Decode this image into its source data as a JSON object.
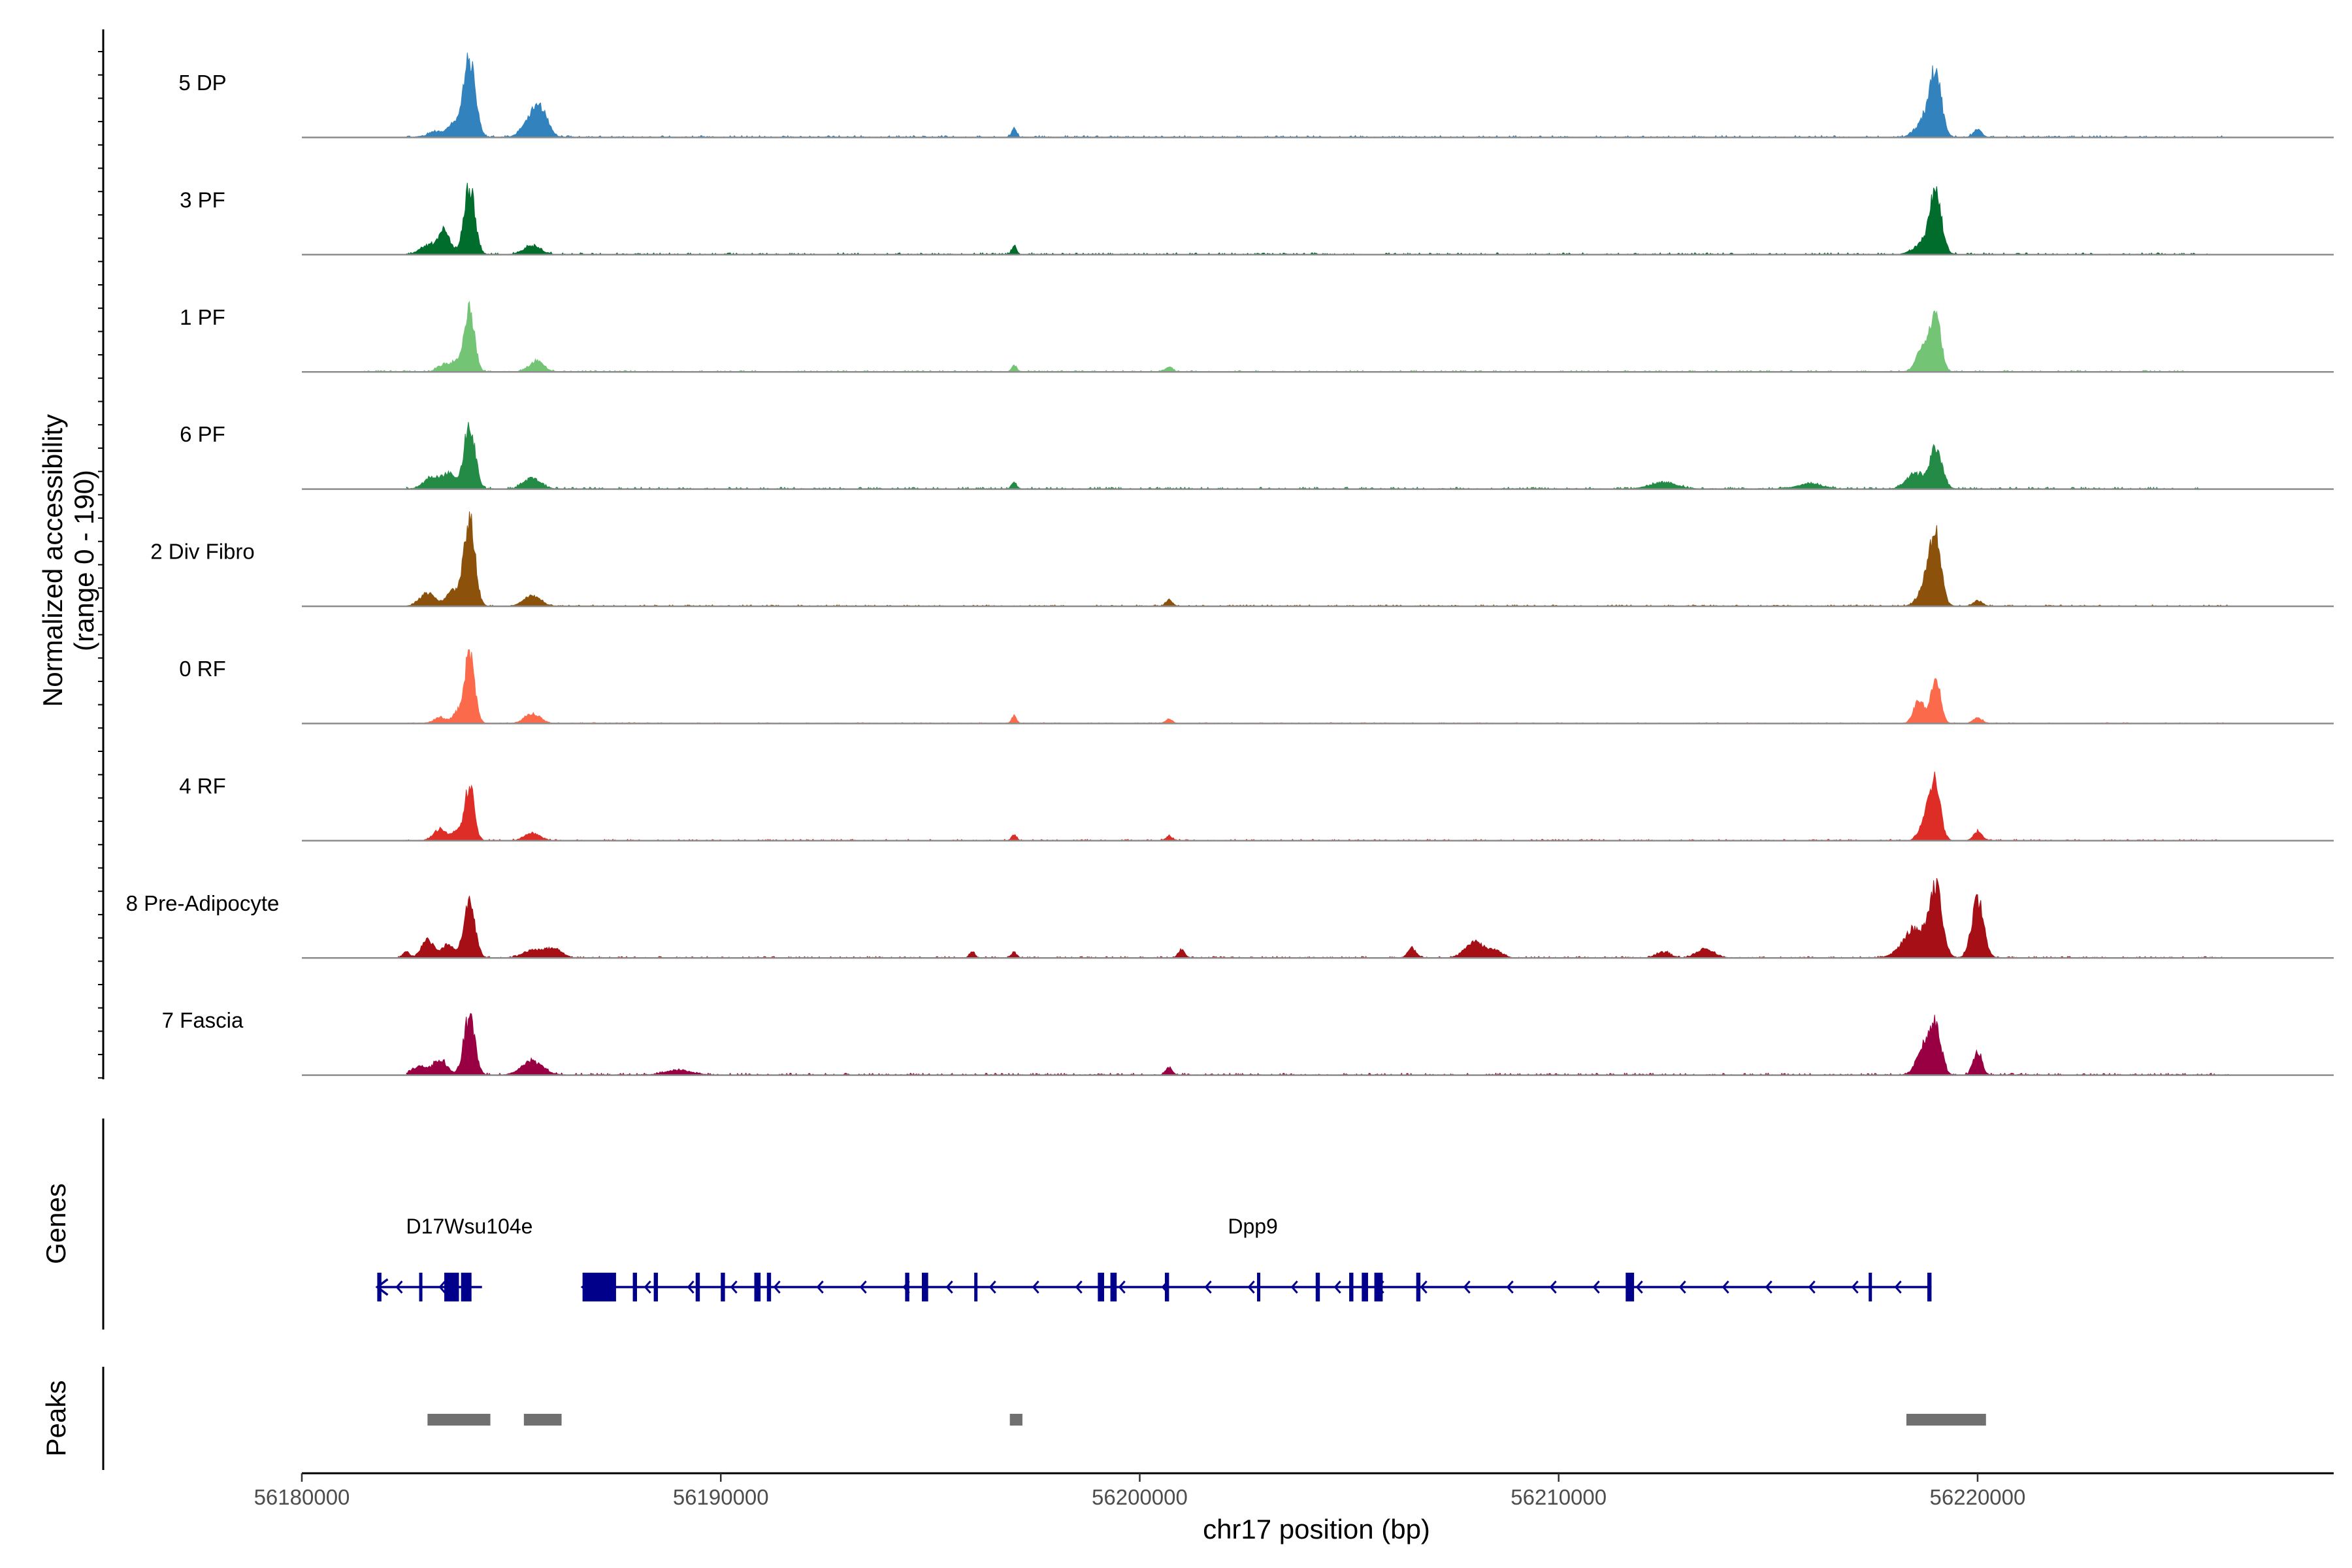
{
  "chart_data": {
    "type": "area",
    "title": "",
    "xlabel": "chr17 position (bp)",
    "ylabel": "Normalized accessibility\n(range 0 - 190)",
    "xlim": [
      56180000,
      56228500
    ],
    "ylim": [
      0,
      190
    ],
    "x_ticks": [
      {
        "value": 56180000,
        "label": "56180000"
      },
      {
        "value": 56190000,
        "label": "56190000"
      },
      {
        "value": 56200000,
        "label": "56200000"
      },
      {
        "value": 56210000,
        "label": "56210000"
      },
      {
        "value": 56220000,
        "label": "56220000"
      }
    ],
    "series": [
      {
        "name": "5 DP",
        "color": "#3182bd",
        "start": 56182500,
        "end": 56226000,
        "noise": 4,
        "noise_seed": 11,
        "peaks": [
          [
            56183200,
            14,
            180
          ],
          [
            56183550,
            22,
            110
          ],
          [
            56183700,
            18,
            90
          ],
          [
            56184000,
            190,
            140
          ],
          [
            56185500,
            56,
            200
          ],
          [
            56185750,
            45,
            150
          ],
          [
            56197000,
            20,
            60
          ],
          [
            56218800,
            50,
            220
          ],
          [
            56219000,
            135,
            130
          ],
          [
            56220000,
            18,
            100
          ]
        ]
      },
      {
        "name": "3 PF",
        "color": "#006d2c",
        "start": 56182500,
        "end": 56225500,
        "noise": 4,
        "noise_seed": 23,
        "peaks": [
          [
            56183000,
            22,
            180
          ],
          [
            56183400,
            55,
            140
          ],
          [
            56184000,
            165,
            130
          ],
          [
            56185500,
            22,
            200
          ],
          [
            56197000,
            20,
            60
          ],
          [
            56218700,
            26,
            220
          ],
          [
            56219000,
            140,
            140
          ]
        ]
      },
      {
        "name": "1 PF",
        "color": "#74c476",
        "start": 56181500,
        "end": 56225000,
        "noise": 3,
        "noise_seed": 37,
        "peaks": [
          [
            56183400,
            18,
            150
          ],
          [
            56183700,
            22,
            110
          ],
          [
            56184000,
            150,
            120
          ],
          [
            56185600,
            26,
            170
          ],
          [
            56197000,
            16,
            60
          ],
          [
            56200700,
            12,
            80
          ],
          [
            56218700,
            60,
            150
          ],
          [
            56219000,
            140,
            120
          ]
        ]
      },
      {
        "name": "6 PF",
        "color": "#238b45",
        "start": 56182500,
        "end": 56225500,
        "noise": 4,
        "noise_seed": 41,
        "peaks": [
          [
            56183100,
            28,
            180
          ],
          [
            56183500,
            36,
            150
          ],
          [
            56184000,
            155,
            130
          ],
          [
            56185500,
            26,
            200
          ],
          [
            56197000,
            16,
            60
          ],
          [
            56212500,
            16,
            300
          ],
          [
            56216000,
            12,
            300
          ],
          [
            56218500,
            36,
            200
          ],
          [
            56219000,
            95,
            150
          ]
        ]
      },
      {
        "name": "2 Div Fibro",
        "color": "#8c510a",
        "start": 56182500,
        "end": 56226000,
        "noise": 3,
        "noise_seed": 53,
        "peaks": [
          [
            56183000,
            32,
            180
          ],
          [
            56183600,
            36,
            150
          ],
          [
            56184000,
            215,
            130
          ],
          [
            56185500,
            24,
            200
          ],
          [
            56200700,
            14,
            80
          ],
          [
            56218800,
            60,
            180
          ],
          [
            56219000,
            150,
            130
          ],
          [
            56220000,
            14,
            100
          ]
        ]
      },
      {
        "name": "0 RF",
        "color": "#fb6a4a",
        "start": 56182500,
        "end": 56226000,
        "noise": 2,
        "noise_seed": 67,
        "peaks": [
          [
            56183300,
            14,
            150
          ],
          [
            56183700,
            22,
            110
          ],
          [
            56184000,
            165,
            120
          ],
          [
            56185500,
            24,
            180
          ],
          [
            56197000,
            18,
            60
          ],
          [
            56200700,
            10,
            80
          ],
          [
            56218600,
            60,
            120
          ],
          [
            56219000,
            120,
            110
          ],
          [
            56220000,
            14,
            100
          ]
        ]
      },
      {
        "name": "4 RF",
        "color": "#de2d26",
        "start": 56182500,
        "end": 56226000,
        "noise": 3,
        "noise_seed": 79,
        "peaks": [
          [
            56183300,
            28,
            150
          ],
          [
            56183700,
            22,
            110
          ],
          [
            56184000,
            135,
            110
          ],
          [
            56185500,
            18,
            180
          ],
          [
            56197000,
            14,
            60
          ],
          [
            56200700,
            10,
            80
          ],
          [
            56218800,
            60,
            150
          ],
          [
            56219000,
            120,
            120
          ],
          [
            56220000,
            22,
            100
          ]
        ]
      },
      {
        "name": "8 Pre-Adipocyte",
        "color": "#a50f15",
        "start": 56182300,
        "end": 56226000,
        "noise": 3,
        "noise_seed": 83,
        "peaks": [
          [
            56182500,
            14,
            80
          ],
          [
            56183000,
            45,
            140
          ],
          [
            56183500,
            32,
            150
          ],
          [
            56184000,
            135,
            130
          ],
          [
            56185500,
            18,
            220
          ],
          [
            56186000,
            22,
            200
          ],
          [
            56196000,
            16,
            60
          ],
          [
            56197000,
            14,
            60
          ],
          [
            56201000,
            18,
            80
          ],
          [
            56206500,
            22,
            100
          ],
          [
            56208000,
            40,
            220
          ],
          [
            56208500,
            16,
            160
          ],
          [
            56212500,
            14,
            160
          ],
          [
            56213500,
            22,
            200
          ],
          [
            56218500,
            70,
            280
          ],
          [
            56219000,
            160,
            150
          ],
          [
            56220000,
            140,
            140
          ]
        ]
      },
      {
        "name": "7 Fascia",
        "color": "#980043",
        "start": 56182500,
        "end": 56226000,
        "noise": 4,
        "noise_seed": 97,
        "peaks": [
          [
            56182800,
            20,
            180
          ],
          [
            56183300,
            36,
            160
          ],
          [
            56184000,
            140,
            130
          ],
          [
            56185500,
            32,
            250
          ],
          [
            56189000,
            12,
            300
          ],
          [
            56200700,
            18,
            80
          ],
          [
            56218700,
            65,
            160
          ],
          [
            56219000,
            120,
            130
          ],
          [
            56220000,
            56,
            100
          ]
        ]
      }
    ],
    "genes_track_label": "Genes",
    "genes": [
      {
        "name": "D17Wsu104e",
        "label_pos": 56184000,
        "strand": "-",
        "start": 56181800,
        "end": 56184300,
        "exons": [
          [
            56181800,
            56181900
          ],
          [
            56182800,
            56182850
          ],
          [
            56183400,
            56183750
          ],
          [
            56183800,
            56184050
          ]
        ]
      },
      {
        "name": "Dpp9",
        "label_pos": 56202700,
        "strand": "-",
        "start": 56186700,
        "end": 56218900,
        "exons": [
          [
            56186700,
            56187500
          ],
          [
            56187900,
            56188000
          ],
          [
            56188400,
            56188500
          ],
          [
            56189400,
            56189500
          ],
          [
            56190000,
            56190100
          ],
          [
            56190800,
            56190950
          ],
          [
            56191100,
            56191200
          ],
          [
            56194400,
            56194500
          ],
          [
            56194800,
            56194950
          ],
          [
            56196050,
            56196100
          ],
          [
            56199000,
            56199150
          ],
          [
            56199300,
            56199450
          ],
          [
            56200600,
            56200700
          ],
          [
            56202800,
            56202850
          ],
          [
            56204200,
            56204300
          ],
          [
            56205000,
            56205100
          ],
          [
            56205300,
            56205450
          ],
          [
            56205600,
            56205800
          ],
          [
            56206600,
            56206700
          ],
          [
            56211600,
            56211800
          ],
          [
            56217400,
            56217450
          ],
          [
            56218800,
            56218900
          ]
        ]
      }
    ],
    "peaks_track_label": "Peaks",
    "peak_regions": [
      [
        56183000,
        56184500
      ],
      [
        56185300,
        56186200
      ],
      [
        56196900,
        56197200
      ],
      [
        56218300,
        56220200
      ]
    ]
  }
}
